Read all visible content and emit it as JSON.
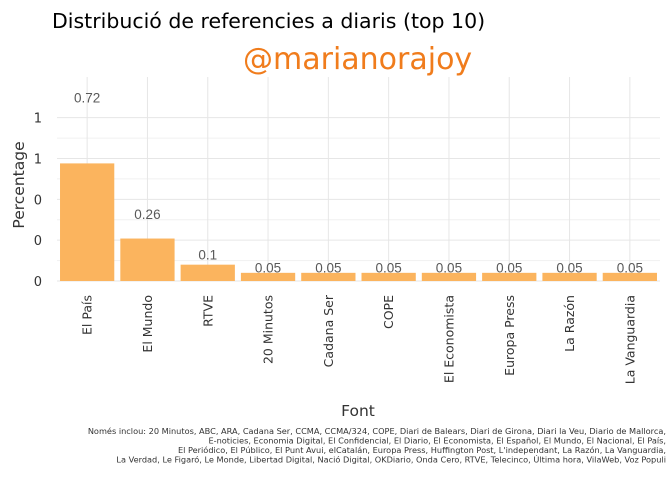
{
  "chart_data": {
    "type": "bar",
    "title": "Distribució de referencies a diaris (top 10)",
    "subtitle": "@marianorajoy",
    "xlabel": "Font",
    "ylabel": "Percentage",
    "categories": [
      "El País",
      "El Mundo",
      "RTVE",
      "20 Minutos",
      "Cadana Ser",
      "COPE",
      "El Economista",
      "Europa Press",
      "La Razón",
      "La Vanguardia"
    ],
    "values": [
      0.72,
      0.26,
      0.1,
      0.05,
      0.05,
      0.05,
      0.05,
      0.05,
      0.05,
      0.05
    ],
    "data_labels": [
      "0.72",
      "0.26",
      "0.1",
      "0.05",
      "0.05",
      "0.05",
      "0.05",
      "0.05",
      "0.05",
      "0.05"
    ],
    "y_ticks": [
      0,
      0.25,
      0.5,
      0.75,
      1.0
    ],
    "y_tick_labels": [
      "0",
      "0",
      "0",
      "1",
      "1"
    ],
    "ylim": [
      0,
      1.2
    ],
    "grid": true,
    "bar_color": "#fbb45e",
    "subtitle_color": "#f07c1c",
    "caption_lines": [
      "Només inclou: 20 Minutos, ABC, ARA, Cadana Ser, CCMA, CCMA/324, COPE, Diari de Balears, Diari de Girona, Diari la Veu, Diario de Mallorca,",
      "E-noticies, Economia Digital, El Confidencial, El Diario, El Economista, El Español, El Mundo, El Nacional, El País,",
      "El Periódico, El Público, El Punt Avui, elCatalán, Europa Press, Huffington Post, L'independant, La Razón, La Vanguardia,",
      "La Verdad, Le Figaró, Le Monde, Libertad Digital, Nació Digital, OKDiario, Onda Cero, RTVE, Telecinco, Última hora, VilaWeb, Voz Populi"
    ]
  }
}
